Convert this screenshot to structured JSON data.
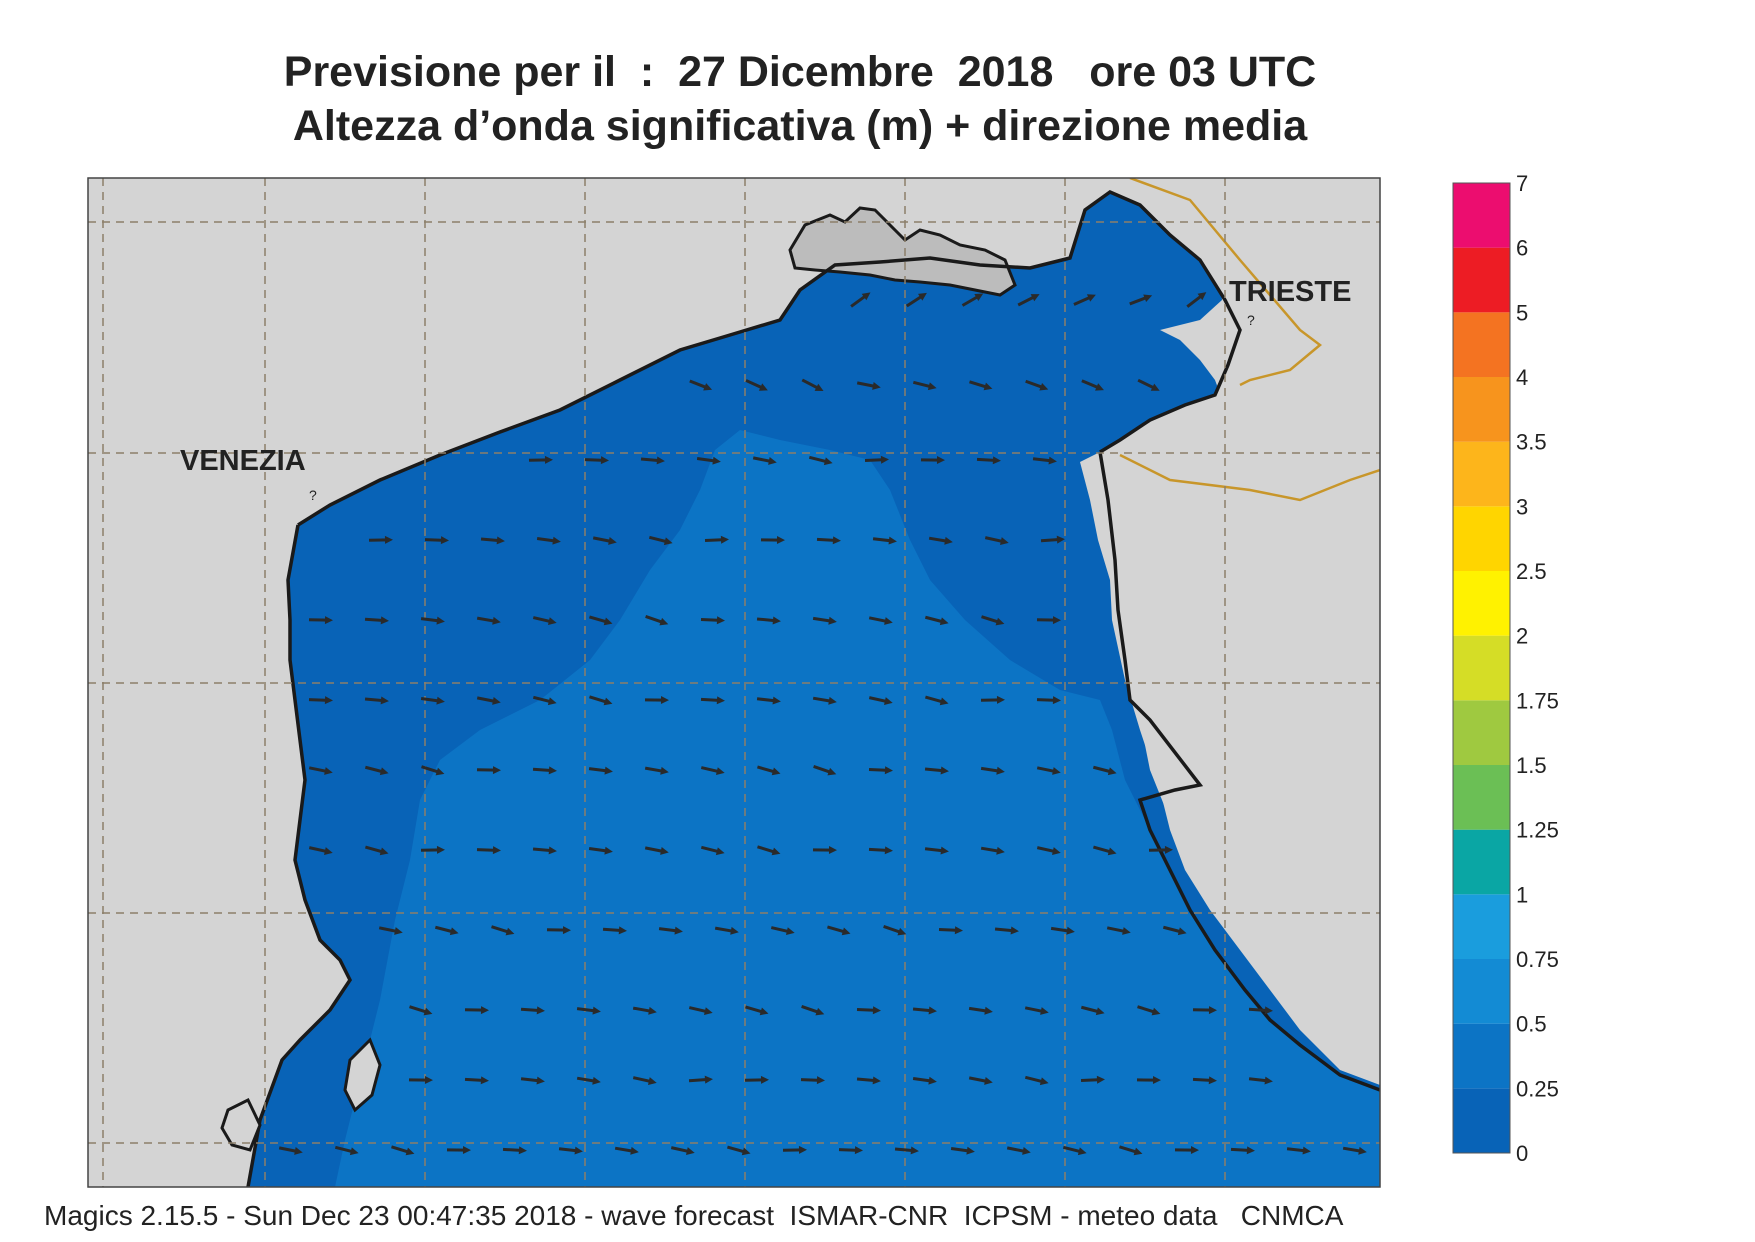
{
  "title": {
    "line1": "Previsione per il  :  27 Dicembre  2018   ore 03 UTC",
    "line2": "Altezza d’onda significativa (m) + direzione media"
  },
  "places": {
    "venezia": "VENEZIA",
    "trieste": "TRIESTE"
  },
  "legend": {
    "labels": [
      "0",
      "0.25",
      "0.5",
      "0.75",
      "1",
      "1.25",
      "1.5",
      "1.75",
      "2",
      "2.5",
      "3",
      "3.5",
      "4",
      "5",
      "6",
      "7"
    ],
    "colors": [
      "#0863b7",
      "#0c74c5",
      "#138bd4",
      "#1a9ddd",
      "#0aa6a4",
      "#6bbf55",
      "#9fc940",
      "#d5dd26",
      "#fff200",
      "#ffd500",
      "#fdb51b",
      "#f7941d",
      "#f47321",
      "#ed1c24",
      "#ec0d6f"
    ]
  },
  "colors": {
    "land": "#d4d4d4",
    "sea_low": "#0863b7",
    "sea_mid": "#0c74c5",
    "coast": "#1a1a1a",
    "border": "#c8962a",
    "grid": "#8c7f6a",
    "arrow": "#2a2a2a"
  },
  "footer": "Magics 2.15.5 - Sun Dec 23 00:47:35 2018 - wave forecast  ISMAR-CNR  ICPSM - meteo data   CNMCA"
}
